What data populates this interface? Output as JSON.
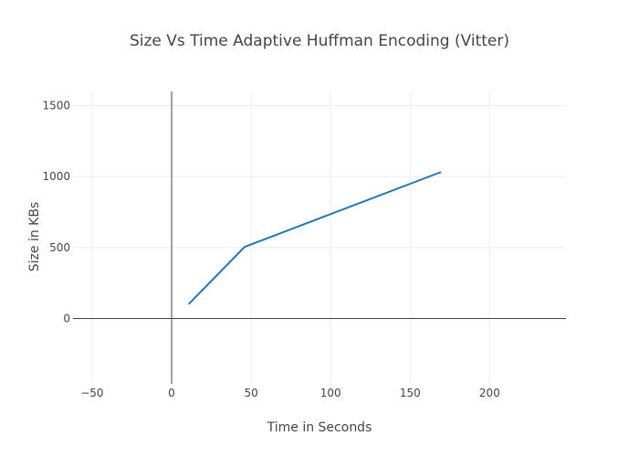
{
  "chart_data": {
    "type": "line",
    "title": "Size Vs Time Adaptive Huffman Encoding (Vitter)",
    "xlabel": "Time in Seconds",
    "ylabel": "Size in KBs",
    "xlim": [
      -62,
      248
    ],
    "ylim": [
      -460,
      1600
    ],
    "xticks": [
      -50,
      0,
      50,
      100,
      150,
      200
    ],
    "yticks": [
      0,
      500,
      1000,
      1500
    ],
    "xtick_labels": [
      "−50",
      "0",
      "50",
      "100",
      "150",
      "200"
    ],
    "ytick_labels": [
      "0",
      "500",
      "1000",
      "1500"
    ],
    "grid": true,
    "series": [
      {
        "color": "#1f77b4",
        "x": [
          11,
          46,
          169
        ],
        "y": [
          105,
          505,
          1030
        ]
      }
    ]
  }
}
